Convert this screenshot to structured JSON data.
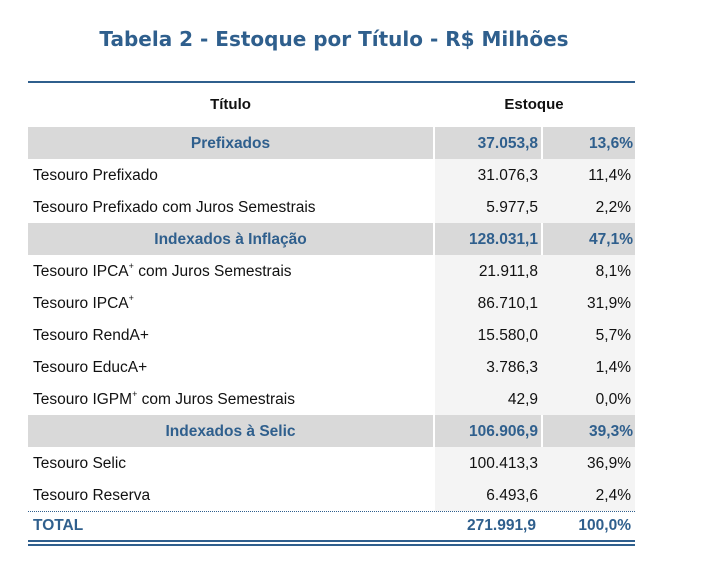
{
  "title": "Tabela 2 - Estoque por Título - R$ Milhões",
  "header": {
    "titulo": "Título",
    "estoque": "Estoque"
  },
  "groups": [
    {
      "name": "Prefixados",
      "value": "37.053,8",
      "pct": "13,6%",
      "items": [
        {
          "name": "Tesouro Prefixado",
          "value": "31.076,3",
          "pct": "11,4%"
        },
        {
          "name": "Tesouro Prefixado com Juros Semestrais",
          "value": "5.977,5",
          "pct": "2,2%"
        }
      ]
    },
    {
      "name": "Indexados à Inflação",
      "value": "128.031,1",
      "pct": "47,1%",
      "items": [
        {
          "name_pre": "Tesouro IPCA",
          "sup": "+",
          "name_post": " com Juros Semestrais",
          "value": "21.911,8",
          "pct": "8,1%"
        },
        {
          "name_pre": "Tesouro IPCA",
          "sup": "+",
          "name_post": "",
          "value": "86.710,1",
          "pct": "31,9%"
        },
        {
          "name": "Tesouro RendA+",
          "value": "15.580,0",
          "pct": "5,7%"
        },
        {
          "name": "Tesouro EducA+",
          "value": "3.786,3",
          "pct": "1,4%"
        },
        {
          "name_pre": "Tesouro IGPM",
          "sup": "+",
          "name_post": " com Juros Semestrais",
          "value": "42,9",
          "pct": "0,0%"
        }
      ]
    },
    {
      "name": "Indexados à Selic",
      "value": "106.906,9",
      "pct": "39,3%",
      "items": [
        {
          "name": "Tesouro Selic",
          "value": "100.413,3",
          "pct": "36,9%"
        },
        {
          "name": "Tesouro Reserva",
          "value": "6.493,6",
          "pct": "2,4%"
        }
      ]
    }
  ],
  "total": {
    "label": "TOTAL",
    "value": "271.991,9",
    "pct": "100,0%"
  }
}
